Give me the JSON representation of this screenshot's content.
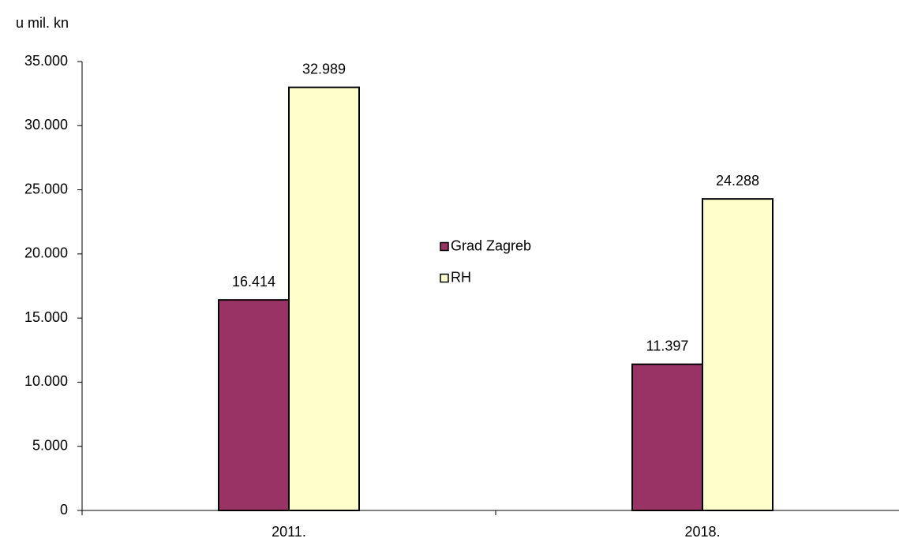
{
  "chart_data": {
    "type": "bar",
    "y_label": "u mil. kn",
    "categories": [
      "2011.",
      "2018."
    ],
    "series": [
      {
        "name": "Grad Zagreb",
        "color": "#993366",
        "values": [
          16414,
          11397
        ],
        "value_labels": [
          "16.414",
          "11.397"
        ]
      },
      {
        "name": "RH",
        "color": "#FFFFCC",
        "values": [
          32989,
          24288
        ],
        "value_labels": [
          "32.989",
          "24.288"
        ]
      }
    ],
    "ylim": [
      0,
      35000
    ],
    "yticks": [
      0,
      {
        "value": 5000,
        "label": "5.000"
      },
      {
        "value": 10000,
        "label": "10.000"
      },
      {
        "value": 15000,
        "label": "15.000"
      },
      {
        "value": 20000,
        "label": "20.000"
      },
      {
        "value": 25000,
        "label": "25.000"
      },
      {
        "value": 30000,
        "label": "30.000"
      },
      {
        "value": 35000,
        "label": "35.000"
      }
    ],
    "grid": false,
    "legend": "center"
  }
}
